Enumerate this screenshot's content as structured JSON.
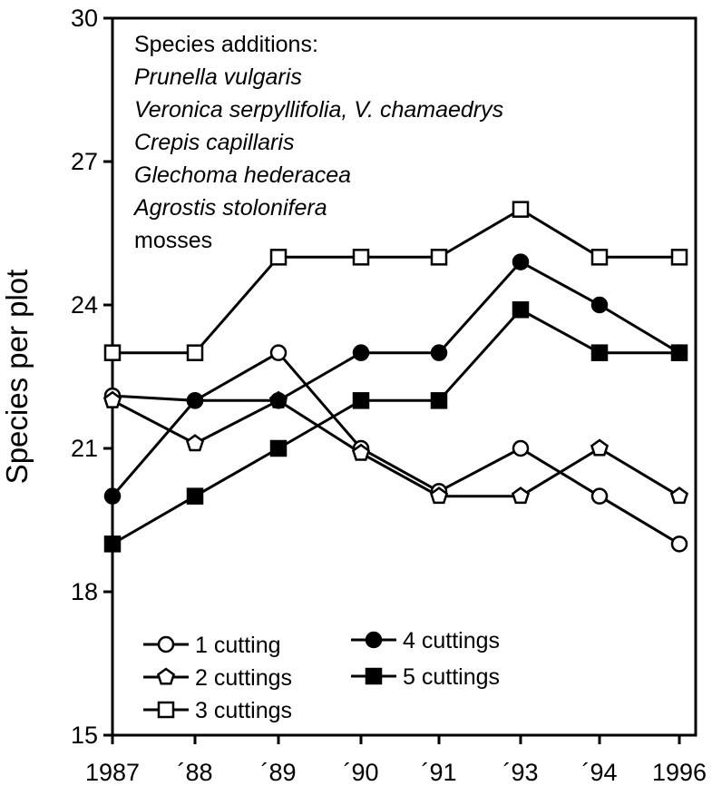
{
  "chart_data": {
    "type": "line",
    "title": "",
    "xlabel": "",
    "ylabel": "Species per plot",
    "x": [
      1987,
      1988,
      1989,
      1990,
      1991,
      1993,
      1994,
      1996
    ],
    "x_tick_labels": [
      "1987",
      "´88",
      "´89",
      "´90",
      "´91",
      "´93",
      "´94",
      "1996"
    ],
    "ylim": [
      15,
      30
    ],
    "y_ticks": [
      15,
      18,
      21,
      24,
      27,
      30
    ],
    "y_tick_labels": [
      "15",
      "18",
      "21",
      "24",
      "27",
      "30"
    ],
    "grid": false,
    "legend_position": "bottom-left",
    "series": [
      {
        "name": "1 cutting",
        "marker": "open-circle",
        "values": [
          22.1,
          22.0,
          23.0,
          21.0,
          20.1,
          21.0,
          20.0,
          19.0
        ]
      },
      {
        "name": "2 cuttings",
        "marker": "open-pentagon",
        "values": [
          22.0,
          21.1,
          22.0,
          20.9,
          20.0,
          20.0,
          21.0,
          20.0
        ]
      },
      {
        "name": "3 cuttings",
        "marker": "open-square",
        "values": [
          23.0,
          23.0,
          25.0,
          25.0,
          25.0,
          26.0,
          25.0,
          25.0
        ]
      },
      {
        "name": "4 cuttings",
        "marker": "filled-circle",
        "values": [
          20.0,
          22.0,
          22.0,
          23.0,
          23.0,
          24.9,
          24.0,
          23.0
        ]
      },
      {
        "name": "5 cuttings",
        "marker": "filled-square",
        "values": [
          19.0,
          20.0,
          21.0,
          22.0,
          22.0,
          23.9,
          23.0,
          23.0
        ]
      }
    ],
    "annotation": {
      "heading": "Species additions:",
      "lines": [
        "Prunella vulgaris",
        "Veronica serpyllifolia, V. chamaedrys",
        "Crepis capillaris",
        "Glechoma hederacea",
        "Agrostis stolonifera",
        "mosses"
      ],
      "italic": [
        true,
        true,
        true,
        true,
        true,
        false
      ]
    }
  }
}
